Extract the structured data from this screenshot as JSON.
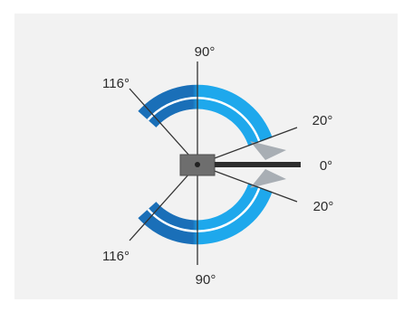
{
  "labels": {
    "top": "90°",
    "bottom": "90°",
    "upper_left": "116°",
    "lower_left": "116°",
    "upper_right": "20°",
    "right": "0°",
    "lower_right": "20°"
  },
  "colors": {
    "background": "#ffffff",
    "panel": "#f2f2f2",
    "arc_dark": "#1a6fb8",
    "arc_light": "#1ea8ec",
    "arc_stripe": "#ffffff",
    "arrow": "#a8aeb4",
    "hub": "#6e6e6e",
    "hub_border": "#4d4d4d",
    "lines": "#333333",
    "pivot": "#222222"
  }
}
